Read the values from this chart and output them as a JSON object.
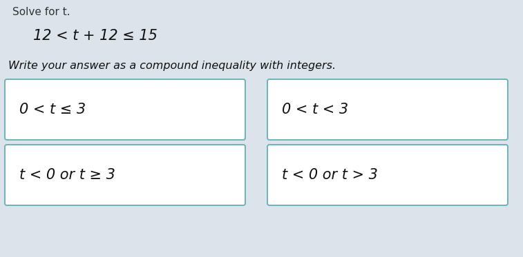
{
  "title_line1": "Solve for t.",
  "equation": "12 < t + 12 ≤ 15",
  "instruction": "Write your answer as a compound inequality with integers.",
  "choices": [
    [
      "0 < t ≤ 3",
      "0 < t < 3"
    ],
    [
      "t < 0 or t ≥ 3",
      "t < 0 or t > 3"
    ]
  ],
  "bg_color": "#dce3ea",
  "box_bg_color": "#ffffff",
  "box_border_color": "#6ab4bc",
  "title_color": "#333333",
  "equation_color": "#111111",
  "instruction_color": "#111111",
  "choice_color": "#111111",
  "title_fontsize": 11,
  "equation_fontsize": 15,
  "instruction_fontsize": 11.5,
  "choice_fontsize": 15,
  "fig_width": 7.57,
  "fig_height": 3.73,
  "dpi": 100
}
